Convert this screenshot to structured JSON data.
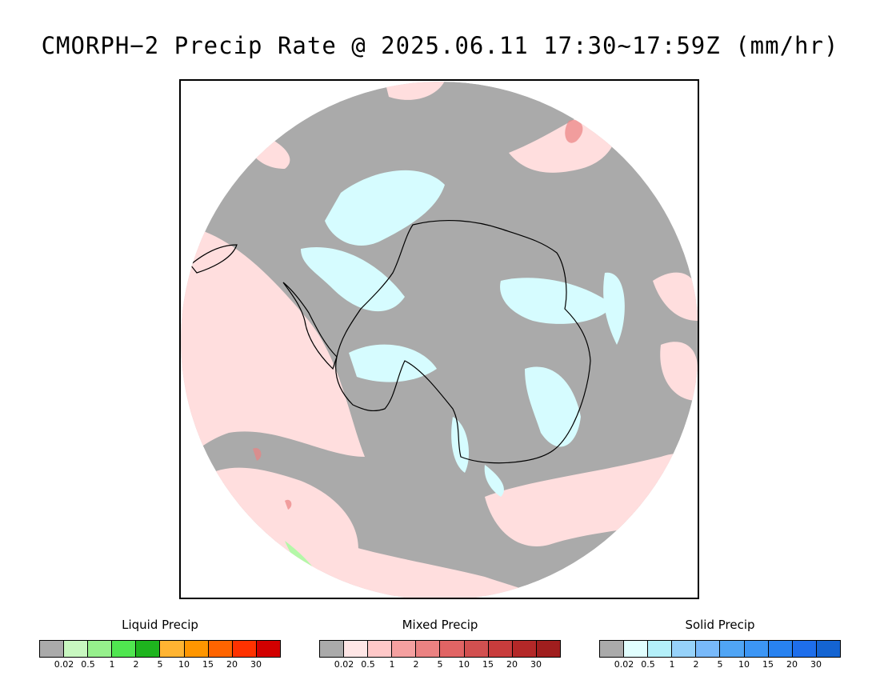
{
  "title": "CMORPH−2 Precip Rate @ 2025.06.11 17:30~17:59Z (mm/hr)",
  "map": {
    "projection": "south polar stereographic",
    "background_color": "#aaaaaa",
    "coastline_color": "#000000"
  },
  "legends": [
    {
      "id": "liquid",
      "title": "Liquid Precip",
      "colors": [
        "#aaaaaa",
        "#c8f8c0",
        "#96f08c",
        "#50e650",
        "#1eb41e",
        "#ffb432",
        "#ff9600",
        "#ff6400",
        "#ff3200",
        "#d20000"
      ],
      "ticks": [
        "0.02",
        "0.5",
        "1",
        "2",
        "5",
        "10",
        "15",
        "20",
        "30"
      ]
    },
    {
      "id": "mixed",
      "title": "Mixed Precip",
      "colors": [
        "#aaaaaa",
        "#ffe6e6",
        "#ffc8c8",
        "#f5a0a0",
        "#eb8282",
        "#e16464",
        "#d25050",
        "#c83c3c",
        "#b42828",
        "#a01e1e"
      ],
      "ticks": [
        "0.02",
        "0.5",
        "1",
        "2",
        "5",
        "10",
        "15",
        "20",
        "30"
      ]
    },
    {
      "id": "solid",
      "title": "Solid Precip",
      "colors": [
        "#aaaaaa",
        "#e1ffff",
        "#b4f0fa",
        "#96d2fa",
        "#78b9fa",
        "#50a5f5",
        "#3c96f5",
        "#2882f0",
        "#1e6eeb",
        "#1464d2"
      ],
      "ticks": [
        "0.02",
        "0.5",
        "1",
        "2",
        "5",
        "10",
        "15",
        "20",
        "30"
      ]
    }
  ]
}
